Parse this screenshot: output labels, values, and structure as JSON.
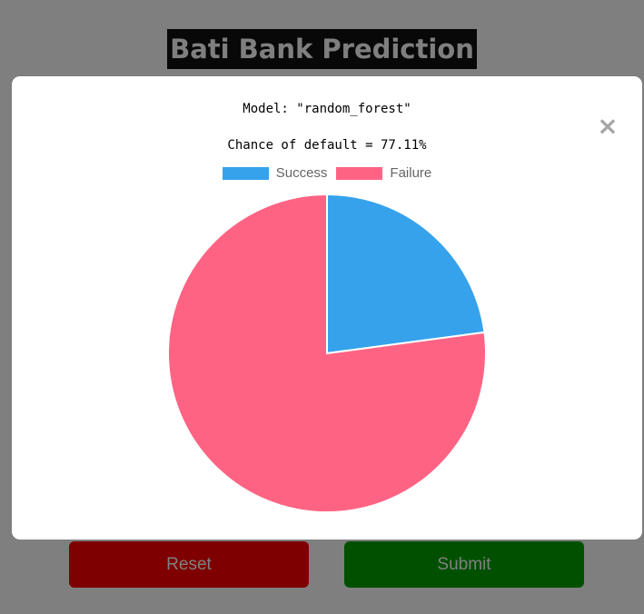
{
  "page": {
    "title": "Bati Bank Prediction",
    "reset_label": "Reset",
    "submit_label": "Submit"
  },
  "modal": {
    "model_text": "Model: \"random_forest\"",
    "chance_text": "Chance of default = 77.11%",
    "close_label": "×"
  },
  "chart_data": {
    "type": "pie",
    "categories": [
      "Success",
      "Failure"
    ],
    "values": [
      22.89,
      77.11
    ],
    "colors": [
      "#36a2eb",
      "#ff6384"
    ],
    "legend_position": "top"
  }
}
